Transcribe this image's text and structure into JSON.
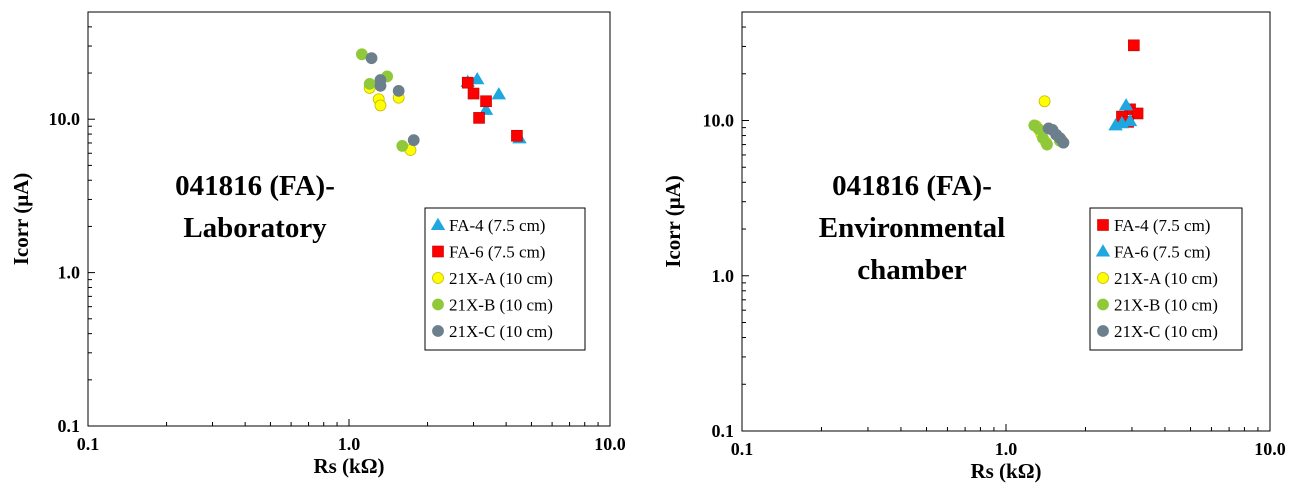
{
  "chart_data": [
    {
      "type": "scatter",
      "x_scale": "log",
      "y_scale": "log",
      "xlim": [
        0.1,
        10.0
      ],
      "ylim": [
        0.1,
        50
      ],
      "xlabel": "Rs (kΩ)",
      "ylabel": "Icorr (μA)",
      "x_ticks": [
        "0.1",
        "1.0",
        "10.0"
      ],
      "y_ticks": [
        "0.1",
        "1.0",
        "10.0"
      ],
      "annotation": [
        "041816 (FA)-",
        "Laboratory"
      ],
      "legend_position": "bottom-right",
      "series": [
        {
          "name": "FA-4 (7.5 cm)",
          "marker": "triangle",
          "color": "#1fa7e0",
          "points": [
            [
              2.85,
              17.5
            ],
            [
              3.1,
              18.2
            ],
            [
              3.75,
              14.5
            ],
            [
              3.35,
              11.5
            ],
            [
              4.5,
              7.5
            ]
          ]
        },
        {
          "name": "FA-6 (7.5 cm)",
          "marker": "square",
          "color": "#ff0000",
          "points": [
            [
              2.85,
              17.3
            ],
            [
              3.0,
              14.7
            ],
            [
              3.35,
              13.1
            ],
            [
              3.15,
              10.2
            ],
            [
              4.4,
              7.8
            ]
          ]
        },
        {
          "name": "21X-A (10 cm)",
          "marker": "circle",
          "color": "#ffff00",
          "points": [
            [
              1.2,
              16.0
            ],
            [
              1.3,
              13.5
            ],
            [
              1.32,
              12.3
            ],
            [
              1.55,
              13.8
            ],
            [
              1.72,
              6.3
            ]
          ]
        },
        {
          "name": "21X-B (10 cm)",
          "marker": "circle",
          "color": "#8fc93a",
          "points": [
            [
              1.12,
              26.5
            ],
            [
              1.2,
              17.0
            ],
            [
              1.4,
              19.0
            ],
            [
              1.6,
              6.7
            ]
          ]
        },
        {
          "name": "21X-C (10 cm)",
          "marker": "circle",
          "color": "#6b7f8c",
          "points": [
            [
              1.22,
              25.0
            ],
            [
              1.32,
              18.0
            ],
            [
              1.32,
              16.5
            ],
            [
              1.55,
              15.3
            ],
            [
              1.77,
              7.3
            ]
          ]
        }
      ]
    },
    {
      "type": "scatter",
      "x_scale": "log",
      "y_scale": "log",
      "xlim": [
        0.1,
        10.0
      ],
      "ylim": [
        0.1,
        50
      ],
      "xlabel": "Rs (kΩ)",
      "ylabel": "Icorr (μA)",
      "x_ticks": [
        "0.1",
        "1.0",
        "10.0"
      ],
      "y_ticks": [
        "0.1",
        "1.0",
        "10.0"
      ],
      "annotation": [
        "041816 (FA)-",
        "Environmental",
        "chamber"
      ],
      "legend_position": "bottom-right",
      "series": [
        {
          "name": "FA-4 (7.5 cm)",
          "marker": "square",
          "color": "#ff0000",
          "points": [
            [
              3.05,
              30.5
            ],
            [
              2.95,
              11.8
            ],
            [
              3.15,
              11.1
            ],
            [
              2.75,
              10.6
            ],
            [
              2.9,
              9.8
            ]
          ]
        },
        {
          "name": "FA-6 (7.5 cm)",
          "marker": "triangle",
          "color": "#1fa7e0",
          "points": [
            [
              2.85,
              12.5
            ],
            [
              2.6,
              9.3
            ],
            [
              2.75,
              9.6
            ],
            [
              2.95,
              9.9
            ]
          ]
        },
        {
          "name": "21X-A (10 cm)",
          "marker": "circle",
          "color": "#ffff00",
          "points": [
            [
              1.4,
              13.3
            ],
            [
              1.3,
              9.2
            ],
            [
              1.36,
              8.2
            ],
            [
              1.42,
              7.2
            ],
            [
              1.62,
              7.5
            ]
          ]
        },
        {
          "name": "21X-B (10 cm)",
          "marker": "circle",
          "color": "#8fc93a",
          "points": [
            [
              1.28,
              9.3
            ],
            [
              1.33,
              8.8
            ],
            [
              1.38,
              7.7
            ],
            [
              1.43,
              7.0
            ],
            [
              1.6,
              7.4
            ]
          ]
        },
        {
          "name": "21X-C (10 cm)",
          "marker": "circle",
          "color": "#6b7f8c",
          "points": [
            [
              1.45,
              8.9
            ],
            [
              1.5,
              8.7
            ],
            [
              1.55,
              8.1
            ],
            [
              1.6,
              7.7
            ],
            [
              1.65,
              7.2
            ]
          ]
        }
      ]
    }
  ]
}
